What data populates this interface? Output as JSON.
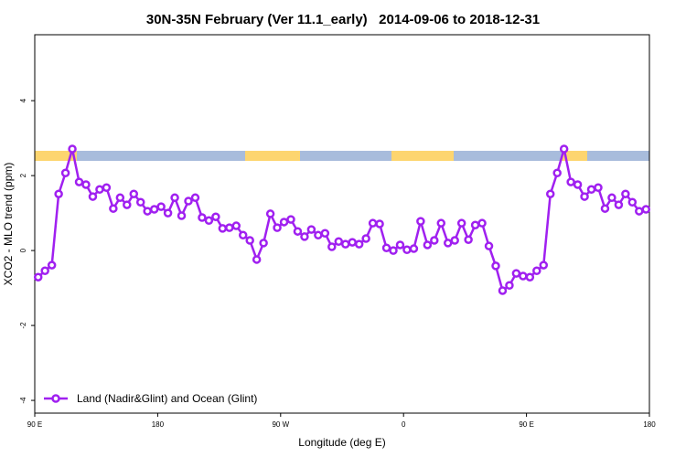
{
  "chart_data": {
    "type": "line",
    "title": "30N-35N February (Ver 11.1_early)   2014-09-06 to 2018-12-31",
    "xlabel": "Longitude (deg E)",
    "ylabel": "XCO2 - MLO trend (ppm)",
    "xlim": [
      90,
      540
    ],
    "ylim": [
      -4.34,
      5.76
    ],
    "xticks": [
      {
        "value": 90,
        "label": "90 E"
      },
      180,
      {
        "value": 270,
        "label": "90 W"
      },
      {
        "value": 360,
        "label": "0"
      },
      {
        "value": 450,
        "label": "90 E"
      },
      {
        "value": 540,
        "label": "180"
      }
    ],
    "yticks": [
      -4,
      -2,
      0,
      2,
      4
    ],
    "legend": "bottom-left",
    "x": [
      92.5,
      97.5,
      102.5,
      107.5,
      112.5,
      117.5,
      122.5,
      127.5,
      132.5,
      137.5,
      142.5,
      147.5,
      152.5,
      157.5,
      162.5,
      167.5,
      172.5,
      177.5,
      182.5,
      187.5,
      192.5,
      197.5,
      202.5,
      207.5,
      212.5,
      217.5,
      222.5,
      227.5,
      232.5,
      237.5,
      242.5,
      247.5,
      252.5,
      257.5,
      262.5,
      267.5,
      272.5,
      277.5,
      282.5,
      287.5,
      292.5,
      297.5,
      302.5,
      307.5,
      312.5,
      317.5,
      322.5,
      327.5,
      332.5,
      337.5,
      342.5,
      347.5,
      352.5,
      357.5,
      362.5,
      367.5,
      372.5,
      377.5,
      382.5,
      387.5,
      392.5,
      397.5,
      402.5,
      407.5,
      412.5,
      417.5,
      422.5,
      427.5,
      432.5,
      437.5,
      442.5,
      447.5,
      452.5,
      457.5,
      462.5,
      467.5,
      472.5,
      477.5,
      482.5,
      487.5,
      492.5,
      497.5,
      502.5,
      507.5,
      512.5,
      517.5,
      522.5,
      527.5,
      532.5,
      537.5
    ],
    "series": [
      {
        "name": "Land (Nadir&Glint) and Ocean (Glint)",
        "color": "#a020f0",
        "values": [
          -0.71,
          -0.54,
          -0.39,
          1.51,
          2.07,
          2.71,
          1.83,
          1.76,
          1.44,
          1.63,
          1.68,
          1.12,
          1.41,
          1.22,
          1.51,
          1.29,
          1.05,
          1.1,
          1.17,
          1.0,
          1.41,
          0.93,
          1.32,
          1.41,
          0.88,
          0.8,
          0.9,
          0.59,
          0.61,
          0.66,
          0.41,
          0.27,
          -0.24,
          0.2,
          0.98,
          0.61,
          0.76,
          0.83,
          0.51,
          0.37,
          0.56,
          0.41,
          0.46,
          0.1,
          0.24,
          0.17,
          0.22,
          0.17,
          0.32,
          0.73,
          0.71,
          0.07,
          0.0,
          0.15,
          0.02,
          0.05,
          0.78,
          0.15,
          0.27,
          0.73,
          0.2,
          0.27,
          0.73,
          0.29,
          0.68,
          0.73,
          0.12,
          -0.41,
          -1.07,
          -0.93,
          -0.61,
          -0.68,
          -0.71,
          -0.54,
          -0.39,
          1.51,
          2.07,
          2.71,
          1.83,
          1.76,
          1.44,
          1.63,
          1.68,
          1.12,
          1.41,
          1.22,
          1.51,
          1.29,
          1.05,
          1.1
        ]
      }
    ]
  }
}
